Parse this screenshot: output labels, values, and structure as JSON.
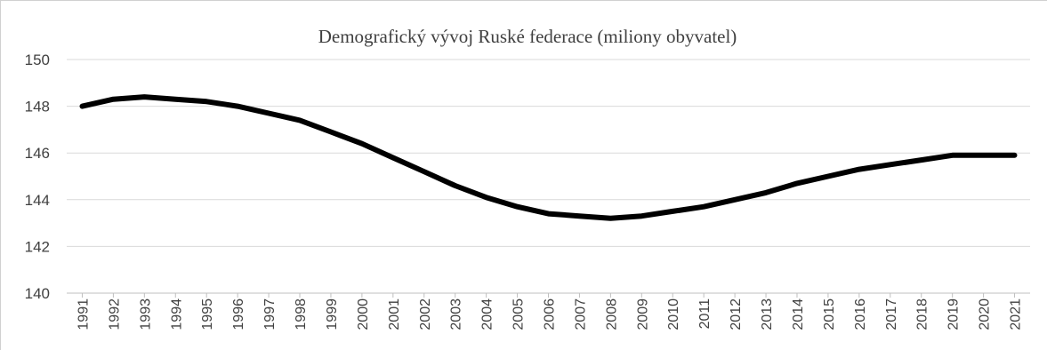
{
  "chart_data": {
    "type": "line",
    "title": "Demografický vývoj Ruské federace (miliony obyvatel)",
    "xlabel": "",
    "ylabel": "",
    "ylim": [
      140,
      150
    ],
    "y_ticks": [
      150,
      148,
      146,
      144,
      142,
      140
    ],
    "grid": true,
    "legend": "none",
    "categories": [
      "1991",
      "1992",
      "1993",
      "1994",
      "1995",
      "1996",
      "1997",
      "1998",
      "1999",
      "2000",
      "2001",
      "2002",
      "2003",
      "2004",
      "2005",
      "2006",
      "2007",
      "2008",
      "2009",
      "2010",
      "2011",
      "2012",
      "2013",
      "2014",
      "2015",
      "2016",
      "2017",
      "2018",
      "2019",
      "2020",
      "2021"
    ],
    "series": [
      {
        "color": "#000000",
        "values": [
          148.0,
          148.3,
          148.4,
          148.3,
          148.2,
          148.0,
          147.7,
          147.4,
          146.9,
          146.4,
          145.8,
          145.2,
          144.6,
          144.1,
          143.7,
          143.4,
          143.3,
          143.2,
          143.3,
          143.5,
          143.7,
          144.0,
          144.3,
          144.7,
          145.0,
          145.3,
          145.5,
          145.7,
          145.9,
          145.9,
          145.9
        ]
      }
    ]
  }
}
